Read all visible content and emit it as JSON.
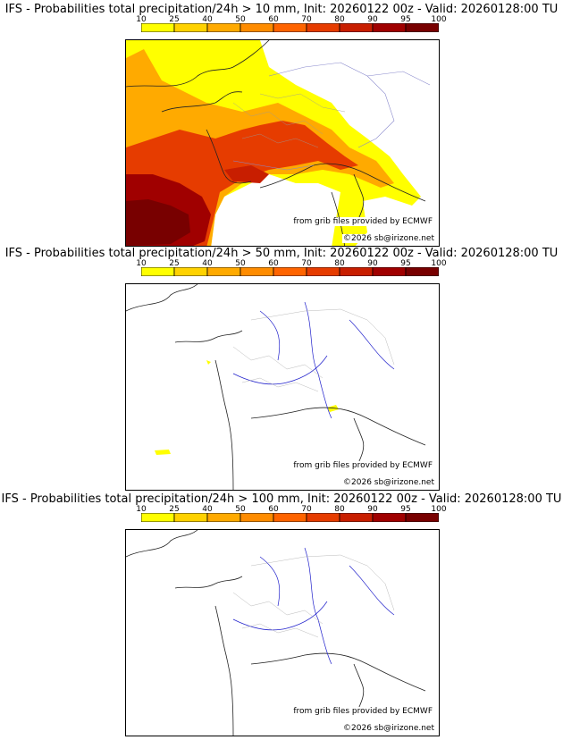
{
  "scale": {
    "ticks": [
      "10",
      "25",
      "40",
      "50",
      "60",
      "70",
      "80",
      "90",
      "95",
      "100"
    ],
    "colors": [
      "#ffff00",
      "#ffd200",
      "#ffaa00",
      "#ff8c00",
      "#ff6400",
      "#e63c00",
      "#c81e00",
      "#a00000",
      "#780000"
    ]
  },
  "panels": [
    {
      "title": "IFS - Probabilities total precipitation/24h > 10 mm, Init: 20260122 00z - Valid: 20260128:00 TU",
      "credit": "from grib files provided by ECMWF",
      "copyright": "©2026 sb@irizone.net",
      "level": "high"
    },
    {
      "title": "IFS - Probabilities total precipitation/24h > 50 mm, Init: 20260122 00z - Valid: 20260128:00 TU",
      "credit": "from grib files provided by ECMWF",
      "copyright": "©2026 sb@irizone.net",
      "level": "low"
    },
    {
      "title": "IFS - Probabilities total precipitation/24h > 100 mm, Init: 20260122 00z - Valid: 20260128:00 TU",
      "credit": "from grib files provided by ECMWF",
      "copyright": "©2026 sb@irizone.net",
      "level": "none"
    }
  ]
}
